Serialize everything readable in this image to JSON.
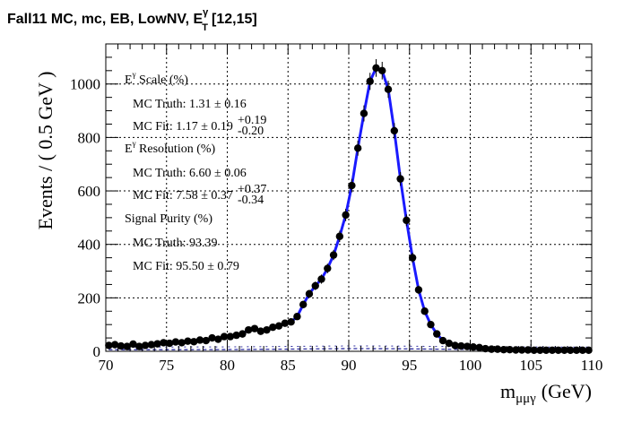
{
  "chart_data": {
    "type": "scatter",
    "title": {
      "main": "Fall11 MC, mc, EB, LowNV, E",
      "sup": "γ",
      "sub": "T",
      "range": "[12,15]"
    },
    "xlabel": {
      "main": "m",
      "sub": "μμγ",
      "unit": "(GeV)"
    },
    "ylabel": "Events / ( 0.5 GeV )",
    "xlim": [
      70,
      110
    ],
    "ylim": [
      0,
      1150
    ],
    "xticks": [
      70,
      75,
      80,
      85,
      90,
      95,
      100,
      105,
      110
    ],
    "yticks": [
      0,
      200,
      400,
      600,
      800,
      1000
    ],
    "grid": true,
    "fit_color": "#1a1aff",
    "background_color": "#2f2fa0",
    "series": [
      {
        "x": [
          70.25,
          70.75,
          71.25,
          71.75,
          72.25,
          72.75,
          73.25,
          73.75,
          74.25,
          74.75,
          75.25,
          75.75,
          76.25,
          76.75,
          77.25,
          77.75,
          78.25,
          78.75,
          79.25,
          79.75,
          80.25,
          80.75,
          81.25,
          81.75,
          82.25,
          82.75,
          83.25,
          83.75,
          84.25,
          84.75,
          85.25,
          85.75,
          86.25,
          86.75,
          87.25,
          87.75,
          88.25,
          88.75,
          89.25,
          89.75,
          90.25,
          90.75,
          91.25,
          91.75,
          92.25,
          92.75,
          93.25,
          93.75,
          94.25,
          94.75,
          95.25,
          95.75,
          96.25,
          96.75,
          97.25,
          97.75,
          98.25,
          98.75,
          99.25,
          99.75,
          100.25,
          100.75,
          101.25,
          101.75,
          102.25,
          102.75,
          103.25,
          103.75,
          104.25,
          104.75,
          105.25,
          105.75,
          106.25,
          106.75,
          107.25,
          107.75,
          108.25,
          108.75,
          109.25,
          109.75
        ],
        "y": [
          22,
          25,
          20,
          18,
          27,
          18,
          22,
          25,
          28,
          32,
          30,
          35,
          32,
          38,
          36,
          42,
          40,
          50,
          45,
          55,
          55,
          60,
          65,
          80,
          85,
          75,
          80,
          90,
          95,
          105,
          110,
          130,
          175,
          215,
          245,
          270,
          310,
          360,
          430,
          510,
          620,
          760,
          890,
          1010,
          1060,
          1050,
          980,
          825,
          645,
          490,
          350,
          230,
          150,
          100,
          65,
          40,
          30,
          22,
          20,
          18,
          16,
          14,
          10,
          8,
          8,
          6,
          6,
          5,
          5,
          5,
          4,
          4,
          4,
          4,
          4,
          4,
          4,
          4,
          4,
          4
        ],
        "errors": [
          6,
          6,
          5,
          5,
          6,
          5,
          5,
          6,
          6,
          7,
          6,
          7,
          6,
          7,
          7,
          7,
          7,
          8,
          8,
          8,
          8,
          9,
          9,
          10,
          10,
          10,
          10,
          11,
          11,
          11,
          11,
          12,
          14,
          15,
          16,
          17,
          18,
          19,
          21,
          23,
          25,
          28,
          30,
          32,
          33,
          33,
          32,
          29,
          26,
          22,
          19,
          16,
          13,
          11,
          9,
          7,
          6,
          5,
          5,
          4,
          4,
          4,
          4,
          3,
          3,
          3,
          3,
          3,
          3,
          3,
          3,
          3,
          3,
          3,
          3,
          3,
          3,
          3,
          3,
          3
        ]
      }
    ],
    "annotations": [
      {
        "type": "header",
        "label": "E",
        "sup": "γ",
        "rest": " Scale (%)"
      },
      {
        "type": "row",
        "text": "MC Truth: 1.31 ± 0.16"
      },
      {
        "type": "row",
        "text": "MC Fit: 1.17 ± 0.19",
        "up": "+0.19",
        "down": "-0.20"
      },
      {
        "type": "header",
        "label": "E",
        "sup": "γ",
        "rest": " Resolution (%)"
      },
      {
        "type": "row",
        "text": "MC Truth: 6.60 ± 0.06"
      },
      {
        "type": "row",
        "text": "MC Fit: 7.58 ± 0.37",
        "up": "+0.37",
        "down": "-0.34"
      },
      {
        "type": "header",
        "label": "Signal Purity (%)"
      },
      {
        "type": "row",
        "text": "MC Truth: 93.39"
      },
      {
        "type": "row",
        "text": "MC Fit: 95.50 ± 0.79"
      }
    ]
  }
}
